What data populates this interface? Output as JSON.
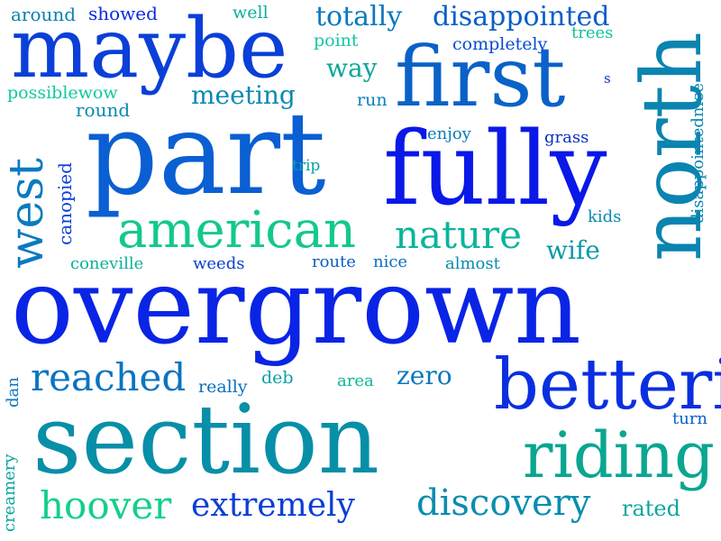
{
  "words": [
    {
      "id": "overgrown",
      "text": "overgrown",
      "color": "#0a24e6",
      "orientation": "horizontal"
    },
    {
      "id": "section",
      "text": "section",
      "color": "#078fa8",
      "orientation": "horizontal"
    },
    {
      "id": "part",
      "text": "part",
      "color": "#0a5fd2",
      "orientation": "horizontal"
    },
    {
      "id": "maybe",
      "text": "maybe",
      "color": "#0a3fd8",
      "orientation": "horizontal"
    },
    {
      "id": "first",
      "text": "first",
      "color": "#0a62c8",
      "orientation": "horizontal"
    },
    {
      "id": "fully",
      "text": "fully",
      "color": "#0a18e8",
      "orientation": "horizontal"
    },
    {
      "id": "north",
      "text": "north",
      "color": "#0a84b0",
      "orientation": "vertical"
    },
    {
      "id": "betteri",
      "text": "betteri",
      "color": "#0a2fe0",
      "orientation": "horizontal"
    },
    {
      "id": "riding",
      "text": "riding",
      "color": "#0aa690",
      "orientation": "horizontal"
    },
    {
      "id": "american",
      "text": "american",
      "color": "#12c98c",
      "orientation": "horizontal"
    },
    {
      "id": "west",
      "text": "west",
      "color": "#0a7ac0",
      "orientation": "vertical"
    },
    {
      "id": "nature",
      "text": "nature",
      "color": "#0ab59a",
      "orientation": "horizontal"
    },
    {
      "id": "reached",
      "text": "reached",
      "color": "#0a74c0",
      "orientation": "horizontal"
    },
    {
      "id": "hoover",
      "text": "hoover",
      "color": "#12d08a",
      "orientation": "horizontal"
    },
    {
      "id": "extremely",
      "text": "extremely",
      "color": "#0a3ed8",
      "orientation": "horizontal"
    },
    {
      "id": "discovery",
      "text": "discovery",
      "color": "#0a8db0",
      "orientation": "horizontal"
    },
    {
      "id": "disappointed",
      "text": "disappointed",
      "color": "#0a5ec8",
      "orientation": "horizontal"
    },
    {
      "id": "totally",
      "text": "totally",
      "color": "#0a78c0",
      "orientation": "horizontal"
    },
    {
      "id": "meeting",
      "text": "meeting",
      "color": "#0a8ab4",
      "orientation": "horizontal"
    },
    {
      "id": "way",
      "text": "way",
      "color": "#0aa898",
      "orientation": "horizontal"
    },
    {
      "id": "wife",
      "text": "wife",
      "color": "#0a9aa8",
      "orientation": "horizontal"
    },
    {
      "id": "zero",
      "text": "zero",
      "color": "#0a78c0",
      "orientation": "horizontal"
    },
    {
      "id": "rated",
      "text": "rated",
      "color": "#0aa6a0",
      "orientation": "horizontal"
    },
    {
      "id": "canopied",
      "text": "canopied",
      "color": "#0a40d8",
      "orientation": "vertical"
    },
    {
      "id": "disappointednice",
      "text": "disappointednice",
      "color": "#0a86b4",
      "orientation": "vertical"
    },
    {
      "id": "around",
      "text": "around",
      "color": "#0a82b0",
      "orientation": "horizontal"
    },
    {
      "id": "showed",
      "text": "showed",
      "color": "#0a2ae0",
      "orientation": "horizontal"
    },
    {
      "id": "well",
      "text": "well",
      "color": "#0ab098",
      "orientation": "horizontal"
    },
    {
      "id": "point",
      "text": "point",
      "color": "#12c8a0",
      "orientation": "horizontal"
    },
    {
      "id": "completely",
      "text": "completely",
      "color": "#0a4ad0",
      "orientation": "horizontal"
    },
    {
      "id": "trees",
      "text": "trees",
      "color": "#12c09a",
      "orientation": "horizontal"
    },
    {
      "id": "possiblewow",
      "text": "possiblewow",
      "color": "#12c8a0",
      "orientation": "horizontal"
    },
    {
      "id": "round",
      "text": "round",
      "color": "#0a8ab0",
      "orientation": "horizontal"
    },
    {
      "id": "run",
      "text": "run",
      "color": "#0a82b8",
      "orientation": "horizontal"
    },
    {
      "id": "s",
      "text": "s",
      "color": "#0a3ac8",
      "orientation": "horizontal"
    },
    {
      "id": "enjoy",
      "text": "enjoy",
      "color": "#0a7ab8",
      "orientation": "horizontal"
    },
    {
      "id": "grass",
      "text": "grass",
      "color": "#0a30c0",
      "orientation": "horizontal"
    },
    {
      "id": "trip",
      "text": "trip",
      "color": "#0aa0a8",
      "orientation": "horizontal"
    },
    {
      "id": "kids",
      "text": "kids",
      "color": "#0a8ab0",
      "orientation": "horizontal"
    },
    {
      "id": "coneville",
      "text": "coneville",
      "color": "#0ab098",
      "orientation": "horizontal"
    },
    {
      "id": "weeds",
      "text": "weeds",
      "color": "#0a40d0",
      "orientation": "horizontal"
    },
    {
      "id": "route",
      "text": "route",
      "color": "#0a60c8",
      "orientation": "horizontal"
    },
    {
      "id": "nice",
      "text": "nice",
      "color": "#0a70c0",
      "orientation": "horizontal"
    },
    {
      "id": "almost",
      "text": "almost",
      "color": "#0a8ab0",
      "orientation": "horizontal"
    },
    {
      "id": "dan",
      "text": "dan",
      "color": "#0a78c0",
      "orientation": "vertical"
    },
    {
      "id": "really",
      "text": "really",
      "color": "#0a70c0",
      "orientation": "horizontal"
    },
    {
      "id": "deb",
      "text": "deb",
      "color": "#0aa0a8",
      "orientation": "horizontal"
    },
    {
      "id": "area",
      "text": "area",
      "color": "#0ab898",
      "orientation": "horizontal"
    },
    {
      "id": "turn",
      "text": "turn",
      "color": "#0a60c8",
      "orientation": "horizontal"
    },
    {
      "id": "creamery",
      "text": "creamery",
      "color": "#0aa4a0",
      "orientation": "vertical"
    }
  ]
}
